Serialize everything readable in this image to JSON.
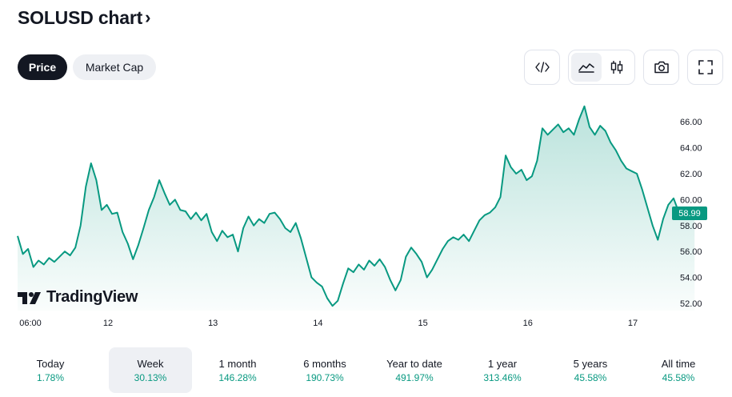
{
  "header": {
    "title": "SOLUSD chart",
    "chevron": "›"
  },
  "tabs": [
    {
      "label": "Price",
      "active": true
    },
    {
      "label": "Market Cap",
      "active": false
    }
  ],
  "toolbar": {
    "embed_icon": "code-icon",
    "area_icon": "area-chart-icon",
    "candle_icon": "candlestick-icon",
    "snapshot_icon": "camera-icon",
    "fullscreen_icon": "fullscreen-icon"
  },
  "brand": {
    "logo_text": "TradingView"
  },
  "colors": {
    "accent": "#089981",
    "dark": "#131722",
    "muted_bg": "#eef0f4"
  },
  "chart_data": {
    "type": "area",
    "series": [
      {
        "points": [
          [
            0,
            57.2
          ],
          [
            0.05,
            55.8
          ],
          [
            0.1,
            56.2
          ],
          [
            0.15,
            54.8
          ],
          [
            0.2,
            55.3
          ],
          [
            0.25,
            55.0
          ],
          [
            0.3,
            55.5
          ],
          [
            0.35,
            55.2
          ],
          [
            0.4,
            55.6
          ],
          [
            0.45,
            56.0
          ],
          [
            0.5,
            55.7
          ],
          [
            0.55,
            56.3
          ],
          [
            0.6,
            58.0
          ],
          [
            0.65,
            61.0
          ],
          [
            0.7,
            62.8
          ],
          [
            0.75,
            61.5
          ],
          [
            0.8,
            59.2
          ],
          [
            0.85,
            59.6
          ],
          [
            0.9,
            58.9
          ],
          [
            0.95,
            59.0
          ],
          [
            1.0,
            57.5
          ],
          [
            1.05,
            56.6
          ],
          [
            1.1,
            55.4
          ],
          [
            1.15,
            56.5
          ],
          [
            1.2,
            57.8
          ],
          [
            1.25,
            59.2
          ],
          [
            1.3,
            60.2
          ],
          [
            1.35,
            61.5
          ],
          [
            1.4,
            60.5
          ],
          [
            1.45,
            59.6
          ],
          [
            1.5,
            60.0
          ],
          [
            1.55,
            59.2
          ],
          [
            1.6,
            59.1
          ],
          [
            1.65,
            58.5
          ],
          [
            1.7,
            59.0
          ],
          [
            1.75,
            58.4
          ],
          [
            1.8,
            58.9
          ],
          [
            1.85,
            57.5
          ],
          [
            1.9,
            56.8
          ],
          [
            1.95,
            57.6
          ],
          [
            2.0,
            57.1
          ],
          [
            2.05,
            57.3
          ],
          [
            2.1,
            56.0
          ],
          [
            2.15,
            57.8
          ],
          [
            2.2,
            58.7
          ],
          [
            2.25,
            58.0
          ],
          [
            2.3,
            58.5
          ],
          [
            2.35,
            58.2
          ],
          [
            2.4,
            58.9
          ],
          [
            2.45,
            59.0
          ],
          [
            2.5,
            58.5
          ],
          [
            2.55,
            57.8
          ],
          [
            2.6,
            57.5
          ],
          [
            2.65,
            58.2
          ],
          [
            2.7,
            57.0
          ],
          [
            2.75,
            55.5
          ],
          [
            2.8,
            54.0
          ],
          [
            2.85,
            53.6
          ],
          [
            2.9,
            53.3
          ],
          [
            2.95,
            52.4
          ],
          [
            3.0,
            51.8
          ],
          [
            3.05,
            52.2
          ],
          [
            3.1,
            53.5
          ],
          [
            3.15,
            54.7
          ],
          [
            3.2,
            54.4
          ],
          [
            3.25,
            55.0
          ],
          [
            3.3,
            54.6
          ],
          [
            3.35,
            55.3
          ],
          [
            3.4,
            54.9
          ],
          [
            3.45,
            55.4
          ],
          [
            3.5,
            54.8
          ],
          [
            3.55,
            53.8
          ],
          [
            3.6,
            53.0
          ],
          [
            3.65,
            53.8
          ],
          [
            3.7,
            55.6
          ],
          [
            3.75,
            56.3
          ],
          [
            3.8,
            55.8
          ],
          [
            3.85,
            55.2
          ],
          [
            3.9,
            54.0
          ],
          [
            3.95,
            54.6
          ],
          [
            4.0,
            55.4
          ],
          [
            4.05,
            56.2
          ],
          [
            4.1,
            56.8
          ],
          [
            4.15,
            57.1
          ],
          [
            4.2,
            56.9
          ],
          [
            4.25,
            57.3
          ],
          [
            4.3,
            56.8
          ],
          [
            4.35,
            57.6
          ],
          [
            4.4,
            58.4
          ],
          [
            4.45,
            58.8
          ],
          [
            4.5,
            59.0
          ],
          [
            4.55,
            59.4
          ],
          [
            4.6,
            60.2
          ],
          [
            4.65,
            63.4
          ],
          [
            4.7,
            62.5
          ],
          [
            4.75,
            62.0
          ],
          [
            4.8,
            62.3
          ],
          [
            4.85,
            61.5
          ],
          [
            4.9,
            61.8
          ],
          [
            4.95,
            63.0
          ],
          [
            5.0,
            65.5
          ],
          [
            5.05,
            65.0
          ],
          [
            5.1,
            65.4
          ],
          [
            5.15,
            65.8
          ],
          [
            5.2,
            65.2
          ],
          [
            5.25,
            65.5
          ],
          [
            5.3,
            65.0
          ],
          [
            5.35,
            66.2
          ],
          [
            5.4,
            67.2
          ],
          [
            5.45,
            65.6
          ],
          [
            5.5,
            65.0
          ],
          [
            5.55,
            65.7
          ],
          [
            5.6,
            65.3
          ],
          [
            5.65,
            64.4
          ],
          [
            5.7,
            63.8
          ],
          [
            5.75,
            63.0
          ],
          [
            5.8,
            62.4
          ],
          [
            5.85,
            62.2
          ],
          [
            5.9,
            62.0
          ],
          [
            5.95,
            60.8
          ],
          [
            6.0,
            59.4
          ],
          [
            6.05,
            58.0
          ],
          [
            6.1,
            56.9
          ],
          [
            6.15,
            58.5
          ],
          [
            6.2,
            59.6
          ],
          [
            6.25,
            60.1
          ],
          [
            6.3,
            59.0
          ],
          [
            6.35,
            58.8
          ],
          [
            6.4,
            59.2
          ],
          [
            6.45,
            58.99
          ]
        ]
      }
    ],
    "x_tick_labels": [
      "06:00",
      "12",
      "13",
      "14",
      "15",
      "16",
      "17"
    ],
    "y_tick_labels": [
      "52.00",
      "54.00",
      "56.00",
      "58.00",
      "60.00",
      "62.00",
      "64.00",
      "66.00"
    ],
    "ylim": [
      51.5,
      67.5
    ],
    "last_price": "58.99",
    "grid": false
  },
  "periods": [
    {
      "label": "Today",
      "value": "1.78%"
    },
    {
      "label": "Week",
      "value": "30.13%",
      "active": true
    },
    {
      "label": "1 month",
      "value": "146.28%"
    },
    {
      "label": "6 months",
      "value": "190.73%"
    },
    {
      "label": "Year to date",
      "value": "491.97%"
    },
    {
      "label": "1 year",
      "value": "313.46%"
    },
    {
      "label": "5 years",
      "value": "45.58%"
    },
    {
      "label": "All time",
      "value": "45.58%"
    }
  ]
}
